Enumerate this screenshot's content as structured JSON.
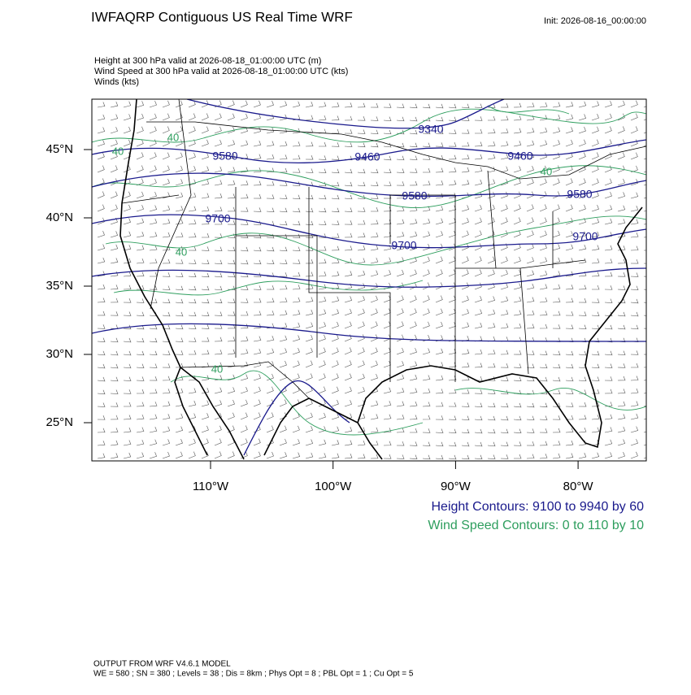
{
  "header": {
    "title": "IWFAQRP Contiguous US Real Time WRF",
    "init": "Init: 2026-08-16_00:00:00"
  },
  "fields": [
    "Height at 300 hPa valid at 2026-08-18_01:00:00 UTC   (m)",
    "Wind Speed at 300 hPa valid at 2026-08-18_01:00:00 UTC   (kts)",
    "Winds   (kts)"
  ],
  "map": {
    "lon_ticks": [
      {
        "value": -110,
        "label": "110°W"
      },
      {
        "value": -100,
        "label": "100°W"
      },
      {
        "value": -90,
        "label": "90°W"
      },
      {
        "value": -80,
        "label": "80°W"
      }
    ],
    "lat_ticks": [
      {
        "value": 45,
        "label": "45°N"
      },
      {
        "value": 40,
        "label": "40°N"
      },
      {
        "value": 35,
        "label": "35°N"
      },
      {
        "value": 30,
        "label": "30°N"
      },
      {
        "value": 25,
        "label": "25°N"
      }
    ],
    "height_contour_labels": [
      9340,
      9580,
      9460,
      9460,
      9580,
      9580,
      9700,
      9700,
      9700
    ],
    "wind_contour_labels": [
      40,
      40,
      40,
      40,
      40
    ]
  },
  "legend": [
    "Height Contours: 9100 to 9940 by 60",
    "Wind Speed Contours: 0 to 110 by 10"
  ],
  "footer": [
    "OUTPUT FROM WRF V4.6.1 MODEL",
    "WE = 580 ; SN = 380 ; Levels = 38 ; Dis = 8km ; Phys Opt = 8 ; PBL Opt = 1 ; Cu Opt = 5"
  ]
}
